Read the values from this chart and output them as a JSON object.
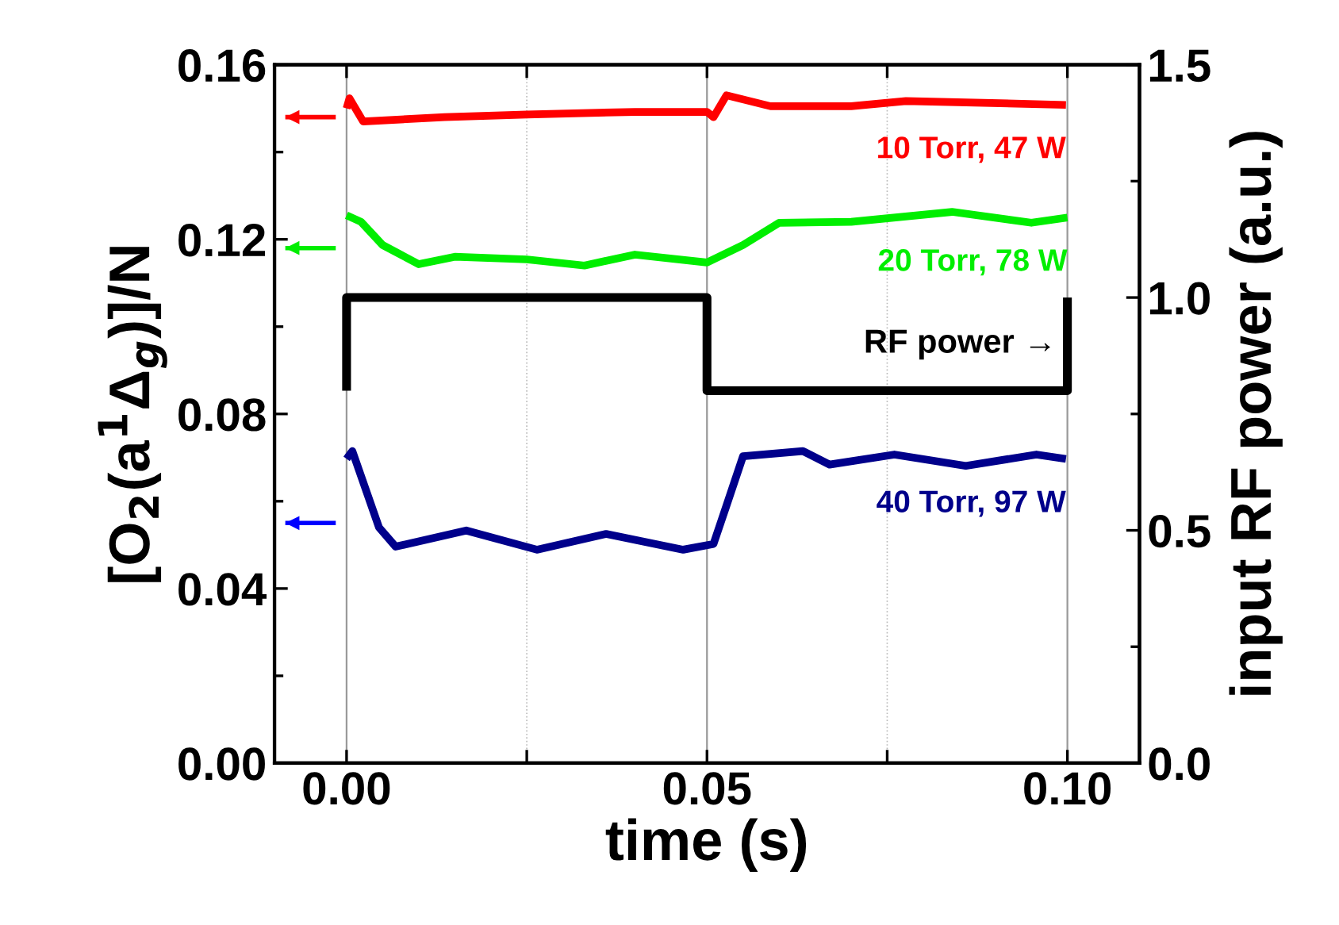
{
  "chart_data": {
    "type": "line",
    "xlabel": "time (s)",
    "ylabel": "[O$_{2}$(a$^{1}$Δ$_{g}$)]/N",
    "y2label": "input RF power (a.u.)",
    "xlim": [
      -0.01,
      0.11
    ],
    "xticks": [
      {
        "value": 0,
        "label": "0.00"
      },
      {
        "value": 0.025,
        "label": null
      },
      0.05,
      {
        "value": 0.075,
        "label": null
      },
      {
        "value": 0.1,
        "label": "0.10"
      }
    ],
    "ylim": [
      0,
      0.16
    ],
    "yticks": [
      {
        "value": 0,
        "label": "0.00"
      },
      0.04,
      0.08,
      0.12,
      0.16
    ],
    "y2lim": [
      0,
      1.5
    ],
    "y2ticks": [
      {
        "value": 0,
        "label": "0.0"
      },
      0.5,
      {
        "value": 1,
        "label": "1.0"
      },
      1.5
    ],
    "grid": "x",
    "marker": "none",
    "line_style": "solid",
    "series": [
      {
        "name": "10 Torr, 47 W",
        "color": "#ff0000",
        "x": [
          0,
          0.0004,
          0.0023,
          0.0136,
          0.025,
          0.04,
          0.05,
          0.0509,
          0.0527,
          0.0588,
          0.07,
          0.0776,
          0.0998
        ],
        "values": [
          0.15,
          0.1523,
          0.147,
          0.148,
          0.1486,
          0.1492,
          0.1492,
          0.148,
          0.153,
          0.1505,
          0.1505,
          0.1517,
          0.1508
        ]
      },
      {
        "name": "20 Torr, 78 W",
        "color": "#00ee00",
        "x": [
          0,
          0.002,
          0.005,
          0.01,
          0.015,
          0.025,
          0.033,
          0.04,
          0.05,
          0.055,
          0.06,
          0.07,
          0.084,
          0.095,
          0.1
        ],
        "values": [
          0.1255,
          0.124,
          0.1187,
          0.1143,
          0.116,
          0.1154,
          0.114,
          0.1165,
          0.1147,
          0.1187,
          0.1238,
          0.124,
          0.1263,
          0.1238,
          0.125
        ]
      },
      {
        "name": "40 Torr, 97 W",
        "color": "#00008b",
        "x": [
          0,
          0.0008,
          0.0045,
          0.0068,
          0.0166,
          0.0264,
          0.036,
          0.0467,
          0.0509,
          0.0527,
          0.055,
          0.0633,
          0.067,
          0.076,
          0.0859,
          0.0957,
          0.0998
        ],
        "values": [
          0.0697,
          0.0715,
          0.054,
          0.0496,
          0.0533,
          0.0489,
          0.0525,
          0.0489,
          0.0502,
          0.059,
          0.0703,
          0.0715,
          0.0684,
          0.0707,
          0.0681,
          0.0707,
          0.0697
        ]
      },
      {
        "name": "RF power →",
        "color": "#000000",
        "axis": "y2",
        "x": [
          0,
          0,
          0.05,
          0.05,
          0.1,
          0.1
        ],
        "values": [
          0.8,
          1.0,
          1.0,
          0.8,
          0.8,
          1.0
        ]
      },
      {
        "color": "#ff0000",
        "x": [
          -0.0085,
          -0.0015
        ],
        "values": [
          0.148,
          0.148
        ]
      },
      {
        "color": "#00ee00",
        "x": [
          -0.0085,
          -0.0015
        ],
        "values": [
          0.118,
          0.118
        ]
      },
      {
        "color": "#0000ff",
        "x": [
          -0.0085,
          -0.0015
        ],
        "values": [
          0.055,
          0.055
        ]
      }
    ]
  }
}
